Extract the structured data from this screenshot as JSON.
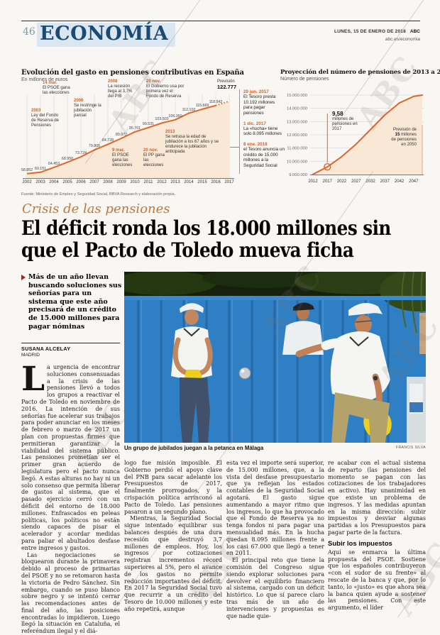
{
  "watermark": {
    "text": "ABC"
  },
  "header": {
    "page_number": "46",
    "section": "ECONOMÍA",
    "date": "LUNES, 15 DE ENERO DE 2018",
    "brand": "ABC",
    "site": "abc.es/economia"
  },
  "charts": {
    "source": "Fuente: Ministerio de Empleo y Seguridad Social, BBVA Research y elaboración propia.",
    "left": {
      "title": "Evolución del gasto en pensiones contributivas en España",
      "subtitle": "En millones de euros",
      "prevision_label": "Previsión",
      "prevision_value": "122.777",
      "annotations": [
        {
          "date": "2003",
          "text": "Ley del Fondo de Reserva de Pensiones"
        },
        {
          "date": "14 mar.",
          "text": "El PSOE gana las elecciones"
        },
        {
          "date": "2006",
          "text": "Se restringe la jubilación parcial"
        },
        {
          "date": "2008",
          "text": "La recesión llega al 3,7% del PIB"
        },
        {
          "date": "20 nov.",
          "text": "El Gobierno usa por primera vez el Fondo de Reserva"
        },
        {
          "date": "9 mar.",
          "text": "El PSOE gana las elecciones"
        },
        {
          "date": "20 nov.",
          "text": "El PP gana las elecciones"
        },
        {
          "date": "2013",
          "text": "Se retrasa la edad de jubilación a los 67 años y se endurece la jubilación anticipada"
        }
      ]
    },
    "timeline": [
      {
        "date": "29 jun. 2017",
        "text": "El Tesoro presta 10.192 millones para pagar pensiones"
      },
      {
        "date": "1 dic. 2017",
        "text": "La «hucha» tiene solo 8.095 millones"
      },
      {
        "date": "8 ene. 2018",
        "text": "el Tesoro anuncia un crédito de 15.000 millones a la Seguridad Social"
      }
    ],
    "right": {
      "title": "Proyección del número de pensiones de 2013 a 2050",
      "subtitle": "Número de pensiones",
      "annotation_2017": {
        "value": "9,58",
        "text": "millones de pensiones en 2017"
      },
      "annotation_2050": {
        "line1": "Previsión de",
        "value": "15",
        "line2": "millones",
        "line3": "de pensiones",
        "line4": "en 2050"
      }
    }
  },
  "chart_data": [
    {
      "type": "line",
      "title": "Evolución del gasto en pensiones contributivas en España",
      "ylabel": "En millones de euros",
      "categories": [
        2002,
        2003,
        2004,
        2005,
        2006,
        2007,
        2008,
        2009,
        2010,
        2011,
        2012,
        2013,
        2014,
        2015,
        2016,
        2017
      ],
      "values": [
        58852,
        60151,
        64453,
        68950,
        73724,
        79805,
        84728,
        89972,
        95701,
        99531,
        103503,
        106350,
        112102,
        115669,
        118942,
        122777
      ],
      "labels": [
        "58.852",
        "60.151",
        "64.453",
        "68.950",
        "73.724",
        "79.805",
        "84.728",
        "89.972",
        "95.701",
        "99.531",
        "103.503",
        "106.350",
        "112.102",
        "115.669",
        "118.942"
      ],
      "forecast_last_point": true,
      "ylim": [
        55000,
        130000
      ],
      "line_color": "#e0662c",
      "area_color": "#f8e8d5"
    },
    {
      "type": "line",
      "title": "Proyección del número de pensiones de 2013 a 2050",
      "ylabel": "Número de pensiones",
      "x": [
        2012,
        2017,
        2022,
        2027,
        2032,
        2037,
        2042,
        2047,
        2050
      ],
      "values": [
        9020000,
        9580000,
        10350000,
        11300000,
        12400000,
        13500000,
        14400000,
        14900000,
        15000000
      ],
      "marker_x": 2017,
      "marker_value": 9580000,
      "x_ticks": [
        2012,
        2017,
        2022,
        2027,
        2032,
        2037,
        2042,
        2047
      ],
      "y_tick_labels": [
        "15.000.000",
        "14.000.000",
        "13.000.000",
        "12.000.000",
        "11.000.000",
        "10.000.000",
        "9.000.000"
      ],
      "y_tick_values": [
        15000000,
        14000000,
        13000000,
        12000000,
        11000000,
        10000000,
        9000000
      ],
      "xlim": [
        2012,
        2050
      ],
      "ylim": [
        9000000,
        15000000
      ],
      "line_color": "#e0662c",
      "area_color": "#f8e8d5"
    }
  ],
  "article": {
    "kicker": "Crisis de las pensiones",
    "headline_l1": "El déficit ronda los 18.000 millones sin",
    "headline_l2": "que el Pacto de Toledo mueva ficha",
    "lede": "Más de un año llevan buscando soluciones sus señorías para un sistema que este año precisará de un crédito de 15.000 millones para pagar nóminas",
    "byline": "SUSANA ALCELAY",
    "byline_city": "MADRID",
    "dropcap": "L",
    "col1_p1": "a urgencia de encontrar soluciones consensuadas a la crisis de las pensiones llevó a todos los grupos a reactivar el Pacto de Toledo en noviembre de 2016. La intención de sus señorías fue acelerar sus trabajos para poder anunciar en los meses de febrero o marzo de 2017 un plan con propuestas firmes que permitieran garantizar la viabilidad del sistema público. Las pensiones prometían ser el primer gran acuerdo de legislatura pero el pacto nunca llegó. A estas alturas no hay ni un solo consenso que permita liberar de gastos al sistema, que el pasado ejercicio cerró con un déficit del entorno de 18.000 millones. Enfrascados en peleas políticas, los políticos no están siendo capaces de pisar el acelerador y acordar medidas para paliar el abultados desfase entre ingresos y gastos.",
    "col1_p2": "Las negociaciones se bloquearon durante la primavera debido al proceso de primarias del PSOE y no se retomaron hasta la victoria de Pedro Sánchez. Sin embargo, cuando se puso blanco sobre negro y se intentó cerrar las recomendaciones antes de final del año, las posiciones encontradas lo impidieron. Luego llegó la situación en Cataluña, el referéndum ilegal y el diá-",
    "col2_p1": "logo fue misión imposible. El Gobierno perdió el apoyo clave del PNB para sacar adelante los Presupuestos de 2017, finalmente prorrogados, y la crispación política arrinconó al Pacto de Toledo. Las pensiones pasaron a un segundo plano.",
    "col2_p2": "Mientras, la Seguridad Social sigue intentado equilibrar sus balances después de una dura recesión que destruyó 3,7 millones de empleos. Hoy, los ingresos por cotizaciones registran incrementos récord superiores al 5%, pero el avance de los gastos no permite reducción importantes del déficit. En 2017 la Seguridad Social tuvo que recurrir a un crédito del Tesoro de 10.000 millones y este año repetirá, aunque",
    "col3_p1": "esta vez el importe será superior, de 15.000 millones, que, a la vista del desfase presupuestario que ya reflejan los estados contables de la Seguridad Social agotará. El gasto sigue aumentando a mayor ritmo que los ingresos, lo que ha provocado que el Fondo de Reserva ya no tenga fondos ni para pagar una mensualidad más. En la hucha quedan 8.095 millones frente a los casi 67.000 que llegó a tener en 2011.",
    "col3_p2": "El principal reto que tiene la comisión del Congreso sigue siendo explorar soluciones para devolver el equilibrio financiero al sistema, cargado con un déficit histórico. Lo que sí parece claro tras más de un año de intervenciones y propuestas es que nadie quie-",
    "col4_p1": "re acabar con el actual sistema de reparto (las pensiones del momento se pagan con las cotizaciones de los trabajadores en activo). Hay unanimidad en que existe un problema de ingresos. Y las medidas apuntan en la misma dirección: subir impuestos y desviar algunas partidas a los Presupuestos para pagar parte de la factura.",
    "subhead": "Subir los impuestos",
    "col4_p2": "Aquí se enmarca la última propuesta del PSOE. Sostiene que los españoles contribuyeron «con el sudor de su frente» al rescate de la banca y que, por lo tanto, lo «justo» es que ahora sea la banca quien ayude a sostener las pensiones. Con este argumento, el líder",
    "caption": "Un grupo de jubilados juegan a la petanca en Málaga",
    "credit": "FRANCIS SILVA"
  }
}
